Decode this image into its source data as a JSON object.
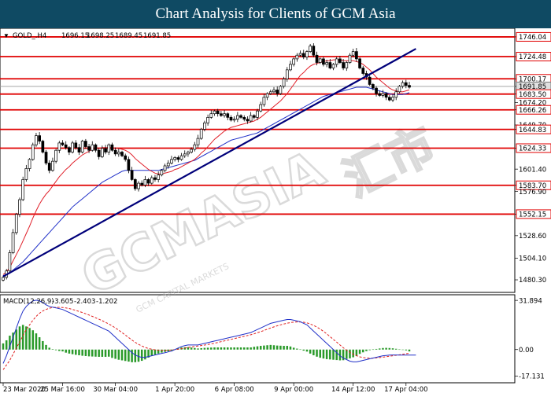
{
  "banner": {
    "title": "Chart Analysis for Clients of GCM Asia"
  },
  "watermark": {
    "brand": "GCMASIA",
    "cjk": "汇市",
    "sub": "GCM CAPITAL MARKETS",
    "color": "#c8c8c8"
  },
  "colors": {
    "banner_bg": "#0f4a63",
    "level_line": "#e00000",
    "trend_line": "#00007a",
    "ma_fast": "#e0202a",
    "ma_slow": "#2030c8",
    "macd_hist": "#2a9a2a",
    "macd_signal": "#e02020",
    "macd_line": "#2030c8",
    "candle": "#000000",
    "current_price_bg": "#e0e0e0"
  },
  "chart_data": [
    {
      "type": "candlestick",
      "symbol_label": "GOLD_.H4",
      "ohlc": {
        "open": "1696.15",
        "high": "1698.25",
        "low": "1689.45",
        "close": "1691.85"
      },
      "x_tick_labels": [
        "23 Mar 2020",
        "25 Mar 16:00",
        "30 Mar 04:00",
        "1 Apr 20:00",
        "6 Apr 08:00",
        "9 Apr 00:00",
        "14 Apr 12:00",
        "17 Apr 04:00"
      ],
      "ylim": [
        1470,
        1752
      ],
      "y_ticks": [
        1746.04,
        1724.48,
        1700.17,
        1691.85,
        1683.5,
        1674.2,
        1666.26,
        1649.7,
        1644.83,
        1624.33,
        1601.4,
        1583.7,
        1576.9,
        1552.15,
        1528.6,
        1504.1,
        1480.3
      ],
      "y_tick_labels": [
        "1746.04",
        "1724.48",
        "1700.17",
        "1691.85",
        "1683.50",
        "1674.20",
        "1666.26",
        "1649.70",
        "1644.83",
        "1624.33",
        "1601.40",
        "1583.70",
        "1576.90",
        "1552.15",
        "1528.60",
        "1504.10",
        "1480.30"
      ],
      "levels": [
        1746.04,
        1724.48,
        1700.17,
        1683.5,
        1666.26,
        1644.83,
        1624.33,
        1583.7,
        1552.15
      ],
      "current_price": 1691.85,
      "trendline": [
        [
          0,
          1484
        ],
        [
          125,
          1733
        ]
      ],
      "closes": [
        1483,
        1490,
        1510,
        1532,
        1552,
        1568,
        1590,
        1602,
        1612,
        1628,
        1638,
        1632,
        1620,
        1608,
        1600,
        1610,
        1622,
        1630,
        1628,
        1625,
        1620,
        1630,
        1625,
        1620,
        1632,
        1626,
        1622,
        1628,
        1622,
        1615,
        1624,
        1620,
        1628,
        1622,
        1618,
        1620,
        1616,
        1612,
        1600,
        1590,
        1580,
        1586,
        1584,
        1590,
        1586,
        1592,
        1590,
        1595,
        1600,
        1605,
        1608,
        1612,
        1614,
        1612,
        1616,
        1618,
        1620,
        1623,
        1628,
        1635,
        1645,
        1652,
        1658,
        1662,
        1665,
        1662,
        1660,
        1662,
        1658,
        1655,
        1656,
        1660,
        1658,
        1656,
        1654,
        1660,
        1658,
        1665,
        1672,
        1680,
        1684,
        1686,
        1688,
        1684,
        1692,
        1700,
        1710,
        1716,
        1722,
        1726,
        1728,
        1724,
        1730,
        1736,
        1726,
        1718,
        1722,
        1716,
        1718,
        1712,
        1716,
        1722,
        1718,
        1712,
        1718,
        1726,
        1730,
        1722,
        1712,
        1706,
        1702,
        1694,
        1690,
        1684,
        1682,
        1684,
        1680,
        1677,
        1680,
        1686,
        1692,
        1696,
        1693,
        1691
      ],
      "ma_fast": [
        1486,
        1489,
        1494,
        1501,
        1508,
        1515,
        1523,
        1531,
        1539,
        1548,
        1556,
        1563,
        1569,
        1574,
        1578,
        1583,
        1588,
        1593,
        1597,
        1601,
        1604,
        1608,
        1611,
        1614,
        1617,
        1619,
        1621,
        1623,
        1624,
        1624,
        1625,
        1625,
        1625,
        1625,
        1624,
        1624,
        1623,
        1622,
        1620,
        1617,
        1613,
        1610,
        1607,
        1604,
        1601,
        1599,
        1597,
        1596,
        1596,
        1597,
        1598,
        1599,
        1601,
        1602,
        1604,
        1606,
        1608,
        1610,
        1612,
        1615,
        1619,
        1622,
        1626,
        1630,
        1634,
        1637,
        1640,
        1643,
        1645,
        1647,
        1648,
        1649,
        1650,
        1651,
        1652,
        1653,
        1654,
        1656,
        1658,
        1661,
        1664,
        1667,
        1670,
        1673,
        1676,
        1680,
        1684,
        1689,
        1694,
        1699,
        1704,
        1707,
        1711,
        1714,
        1716,
        1717,
        1718,
        1719,
        1720,
        1720,
        1721,
        1721,
        1721,
        1720,
        1720,
        1720,
        1720,
        1719,
        1718,
        1716,
        1713,
        1710,
        1706,
        1702,
        1699,
        1696,
        1693,
        1690,
        1688,
        1687,
        1686,
        1686,
        1687,
        1688
      ],
      "ma_slow": [
        1485,
        1486,
        1488,
        1491,
        1494,
        1497,
        1500,
        1504,
        1508,
        1512,
        1516,
        1520,
        1524,
        1528,
        1532,
        1536,
        1540,
        1544,
        1548,
        1552,
        1556,
        1560,
        1563,
        1566,
        1569,
        1572,
        1575,
        1578,
        1581,
        1584,
        1587,
        1589,
        1591,
        1593,
        1595,
        1597,
        1599,
        1600,
        1600,
        1600,
        1600,
        1600,
        1600,
        1600,
        1600,
        1600,
        1600,
        1600,
        1601,
        1602,
        1603,
        1604,
        1605,
        1606,
        1607,
        1608,
        1609,
        1610,
        1611,
        1613,
        1615,
        1617,
        1619,
        1621,
        1623,
        1625,
        1627,
        1629,
        1631,
        1633,
        1634,
        1635,
        1636,
        1637,
        1638,
        1639,
        1640,
        1641,
        1643,
        1645,
        1647,
        1649,
        1651,
        1653,
        1655,
        1657,
        1659,
        1661,
        1663,
        1665,
        1667,
        1669,
        1671,
        1673,
        1675,
        1677,
        1679,
        1681,
        1682,
        1683,
        1684,
        1685,
        1686,
        1687,
        1688,
        1689,
        1690,
        1691,
        1691,
        1691,
        1691,
        1690,
        1689,
        1688,
        1687,
        1686,
        1685,
        1684,
        1683,
        1683,
        1683,
        1683,
        1684,
        1685
      ]
    },
    {
      "type": "macd",
      "label": "MACD(12,26,9)",
      "values": [
        "-3.605",
        "-2.403",
        "-1.202"
      ],
      "ylim": [
        -20,
        34
      ],
      "y_ticks": [
        31.894,
        0.0,
        -17.131
      ],
      "y_tick_labels": [
        "31.894",
        "0.00",
        "-17.131"
      ],
      "macd": [
        -9,
        -4,
        2,
        8,
        14,
        20,
        25,
        28,
        30,
        31.5,
        32,
        31.5,
        30.5,
        29,
        28,
        27.5,
        27,
        26.5,
        26,
        25,
        24,
        23,
        22,
        21,
        20,
        19,
        18,
        17,
        16,
        15,
        14,
        13,
        12,
        10,
        8,
        6,
        4,
        2,
        0,
        -2,
        -3.5,
        -4.5,
        -5,
        -5,
        -4.5,
        -4,
        -3.5,
        -3,
        -2.5,
        -2,
        -1.5,
        -1,
        0,
        1,
        2,
        2.5,
        3,
        3,
        3,
        3,
        3.5,
        4,
        4.5,
        5,
        5.5,
        6,
        6.5,
        7,
        7.5,
        8,
        8.5,
        9,
        9.5,
        10,
        10.5,
        11,
        12,
        13,
        14,
        15,
        16,
        17,
        17.5,
        18,
        18.5,
        19,
        19.5,
        19.5,
        19,
        18.5,
        18,
        17,
        16,
        14,
        12,
        10,
        8,
        6,
        4,
        2,
        0,
        -2,
        -4,
        -5.5,
        -6.5,
        -7.5,
        -8,
        -8,
        -7.5,
        -7,
        -6.5,
        -6,
        -5.5,
        -5,
        -4.5,
        -4,
        -3.8,
        -3.6,
        -3.5,
        -3.5,
        -3.6,
        -3.6,
        -3.6,
        -3.6,
        -3.6,
        -3.6
      ],
      "signal": [
        -13,
        -10,
        -7,
        -3,
        1,
        5,
        9,
        13,
        16,
        19,
        21.5,
        23.5,
        25,
        26,
        26.8,
        27.2,
        27.4,
        27.4,
        27.2,
        27,
        26.6,
        26,
        25.4,
        24.7,
        24,
        23.2,
        22.4,
        21.5,
        20.6,
        19.7,
        18.7,
        17.7,
        16.6,
        15.4,
        14,
        12.6,
        11,
        9.4,
        7.8,
        6.2,
        4.7,
        3.4,
        2.3,
        1.4,
        0.7,
        0.2,
        -0.2,
        -0.4,
        -0.5,
        -0.5,
        -0.4,
        -0.3,
        -0.1,
        0.2,
        0.6,
        1,
        1.4,
        1.7,
        2,
        2.3,
        2.6,
        2.9,
        3.3,
        3.7,
        4.1,
        4.6,
        5.1,
        5.6,
        6.1,
        6.6,
        7.1,
        7.6,
        8.1,
        8.6,
        9.1,
        9.6,
        10.2,
        10.9,
        11.6,
        12.4,
        13.2,
        14,
        14.7,
        15.4,
        16,
        16.6,
        17.1,
        17.5,
        17.8,
        17.9,
        17.9,
        17.7,
        17.3,
        16.6,
        15.7,
        14.6,
        13.3,
        11.8,
        10.2,
        8.4,
        6.6,
        4.8,
        3,
        1.2,
        -0.4,
        -1.8,
        -3,
        -4,
        -4.7,
        -5.2,
        -5.5,
        -5.6,
        -5.6,
        -5.4,
        -5.2,
        -4.9,
        -4.6,
        -4.3,
        -4,
        -3.7,
        -3.4,
        -3.1,
        -2.7,
        -2.4
      ],
      "histogram": [
        4,
        6,
        9,
        11,
        13,
        15,
        16,
        15,
        14,
        12.5,
        10.5,
        8,
        5.5,
        3,
        1.2,
        0.3,
        -0.4,
        -0.9,
        -1.2,
        -2,
        -2.6,
        -3,
        -3.4,
        -3.7,
        -4,
        -4.2,
        -4.4,
        -4.5,
        -4.6,
        -4.7,
        -4.7,
        -4.7,
        -4.6,
        -5.4,
        -6,
        -6.6,
        -7,
        -7.4,
        -7.8,
        -8.2,
        -8.2,
        -7.9,
        -7.3,
        -6.4,
        -5.2,
        -4.2,
        -3.3,
        -2.6,
        -2,
        -1.5,
        -1.1,
        -0.7,
        0.1,
        0.8,
        1.4,
        1.5,
        1.6,
        1.3,
        1,
        0.7,
        0.9,
        1.1,
        1.2,
        1.3,
        1.4,
        1.4,
        1.4,
        1.4,
        1.4,
        1.4,
        1.4,
        1.4,
        1.4,
        1.4,
        1.4,
        1.4,
        1.8,
        2.1,
        2.4,
        2.6,
        2.8,
        3,
        2.8,
        2.6,
        2.5,
        2.4,
        2.4,
        2,
        1.2,
        0.6,
        0.1,
        -0.7,
        -1.3,
        -2.6,
        -3.7,
        -4.6,
        -5.3,
        -5.8,
        -6.2,
        -6.4,
        -6.6,
        -6.8,
        -7,
        -6.9,
        -6.1,
        -5.7,
        -5,
        -4,
        -2.8,
        -1.8,
        -1,
        -0.4,
        0.1,
        0.4,
        0.7,
        1,
        1.1,
        1,
        0.8,
        0.5,
        0.1,
        -0.2,
        -0.5,
        -1.2
      ]
    }
  ]
}
